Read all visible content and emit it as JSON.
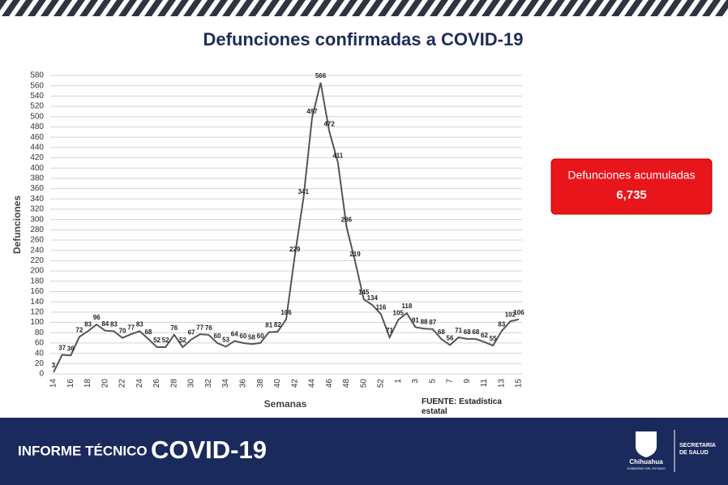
{
  "chart_data": {
    "type": "line",
    "title": "Defunciones confirmadas a COVID-19",
    "x_label": "Semanas",
    "y_label": "Defunciones",
    "color": "#555555",
    "grid": true,
    "categories": [
      "14",
      null,
      "16",
      null,
      "18",
      null,
      "20",
      null,
      "22",
      null,
      "24",
      null,
      "26",
      null,
      "28",
      null,
      "30",
      null,
      "32",
      null,
      "34",
      null,
      "36",
      null,
      "38",
      null,
      "40",
      null,
      "42",
      null,
      "44",
      null,
      "46",
      null,
      "48",
      null,
      "50",
      null,
      "52",
      null,
      "1",
      null,
      "3",
      null,
      "5",
      null,
      "7",
      null,
      "9",
      null,
      "11",
      null,
      "13",
      null,
      "15"
    ],
    "values": [
      3,
      37,
      36,
      72,
      83,
      96,
      84,
      83,
      70,
      77,
      83,
      68,
      52,
      52,
      76,
      52,
      67,
      77,
      76,
      60,
      53,
      64,
      60,
      58,
      60,
      81,
      82,
      106,
      229,
      341,
      497,
      566,
      472,
      411,
      286,
      219,
      145,
      134,
      116,
      71,
      105,
      118,
      91,
      88,
      87,
      68,
      56,
      71,
      68,
      68,
      62,
      55,
      83,
      102,
      106
    ],
    "ylim": [
      0,
      580
    ],
    "yticks": [
      0,
      20,
      40,
      60,
      80,
      100,
      120,
      140,
      160,
      180,
      200,
      220,
      240,
      260,
      280,
      300,
      320,
      340,
      360,
      380,
      400,
      420,
      440,
      460,
      480,
      500,
      520,
      540,
      560,
      580
    ]
  },
  "badge": {
    "title": "Defunciones acumuladas",
    "value": "6,735"
  },
  "source": "FUENTE: Estadística estatal",
  "footer": {
    "label": "INFORME TÉCNICO",
    "title": "COVID-19",
    "state": "Chihuahua",
    "government": "GOBIERNO DEL ESTADO",
    "secretariat": "SECRETARÍA DE SALUD"
  }
}
